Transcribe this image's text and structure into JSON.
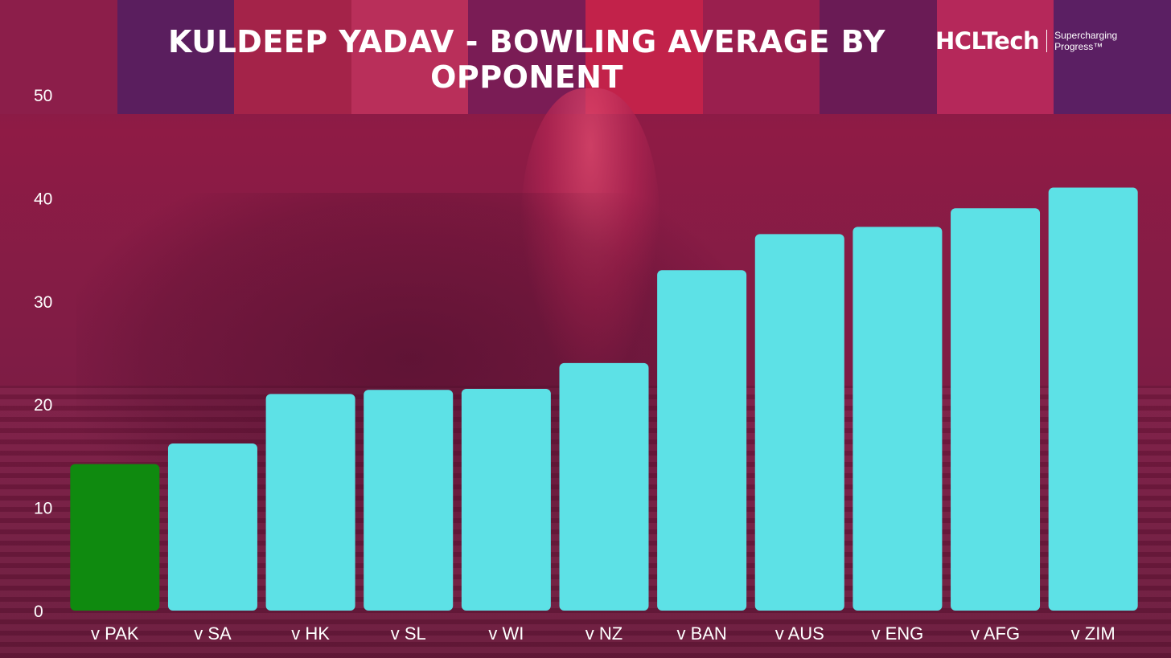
{
  "title": "KULDEEP YADAV - BOWLING AVERAGE BY OPPONENT",
  "brand": {
    "name": "HCLTech",
    "tagline": "Supercharging Progress™"
  },
  "colors": {
    "highlight_bar": "#0f8a0f",
    "bar": "#5de1e6",
    "background": "#7f1c45",
    "text": "#ffffff"
  },
  "chart_data": {
    "type": "bar",
    "title": "KULDEEP YADAV - BOWLING AVERAGE BY OPPONENT",
    "xlabel": "",
    "ylabel": "",
    "categories": [
      "v PAK",
      "v SA",
      "v HK",
      "v SL",
      "v WI",
      "v NZ",
      "v BAN",
      "v AUS",
      "v ENG",
      "v AFG",
      "v ZIM"
    ],
    "values": [
      14.2,
      16.2,
      21.0,
      21.4,
      21.5,
      24.0,
      33.0,
      36.5,
      37.2,
      39.0,
      41.0
    ],
    "highlight": [
      "v PAK"
    ],
    "yticks": [
      0,
      10,
      20,
      30,
      40,
      50
    ],
    "ylim": [
      0,
      50
    ],
    "grid": false,
    "legend": "none"
  }
}
